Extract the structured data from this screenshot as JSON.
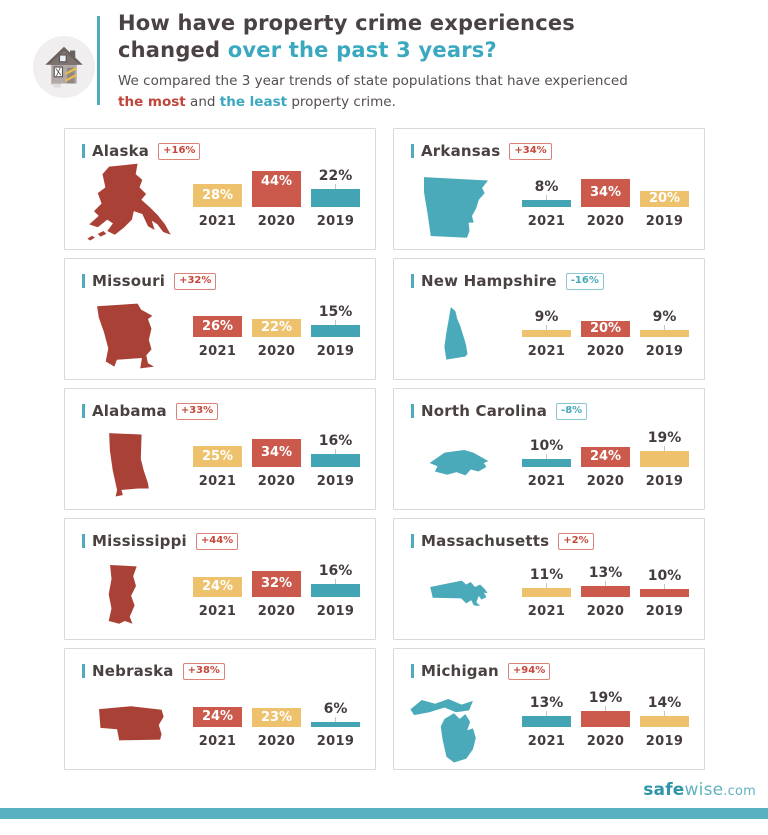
{
  "header": {
    "title_line1": "How have property crime experiences",
    "title_line2_dark": "changed ",
    "title_line2_accent": "over the past 3 years?",
    "subtitle_line1": "We compared the 3 year trends of state populations that have experienced",
    "subtitle_most": "the most",
    "subtitle_mid": " and ",
    "subtitle_least": "the least",
    "subtitle_tail": " property crime."
  },
  "footer": {
    "brand_bold": "safe",
    "brand_light": "wise",
    "brand_suffix": ".com"
  },
  "palette": {
    "bar_red": "#cb5a4d",
    "bar_yellow": "#eec26c",
    "bar_teal": "#43a4b3",
    "state_red": "#aa4136",
    "state_teal": "#4aaaba",
    "accent_teal": "#3aa8be",
    "accent_red": "#c0453a",
    "footer_bar": "#58b1c0"
  },
  "chart_data": [
    {
      "type": "bar",
      "state": "Alaska",
      "state_key": "alaska",
      "state_color": "red",
      "change_label": "+16%",
      "badge_color": "red",
      "categories": [
        "2021",
        "2020",
        "2019"
      ],
      "values": [
        28,
        44,
        22
      ],
      "bar_colors": [
        "yellow",
        "red",
        "teal"
      ],
      "label_inside": [
        true,
        true,
        false
      ]
    },
    {
      "type": "bar",
      "state": "Arkansas",
      "state_key": "arkansas",
      "state_color": "teal",
      "change_label": "+34%",
      "badge_color": "red",
      "categories": [
        "2021",
        "2020",
        "2019"
      ],
      "values": [
        8,
        34,
        20
      ],
      "bar_colors": [
        "teal",
        "red",
        "yellow"
      ],
      "label_inside": [
        false,
        true,
        true
      ]
    },
    {
      "type": "bar",
      "state": "Missouri",
      "state_key": "missouri",
      "state_color": "red",
      "change_label": "+32%",
      "badge_color": "red",
      "categories": [
        "2021",
        "2020",
        "2019"
      ],
      "values": [
        26,
        22,
        15
      ],
      "bar_colors": [
        "red",
        "yellow",
        "teal"
      ],
      "label_inside": [
        true,
        true,
        false
      ]
    },
    {
      "type": "bar",
      "state": "New Hampshire",
      "state_key": "new-hampshire",
      "state_color": "teal",
      "change_label": "-16%",
      "badge_color": "teal",
      "categories": [
        "2021",
        "2020",
        "2019"
      ],
      "values": [
        9,
        20,
        9
      ],
      "bar_colors": [
        "yellow",
        "red",
        "yellow"
      ],
      "label_inside": [
        false,
        true,
        false
      ]
    },
    {
      "type": "bar",
      "state": "Alabama",
      "state_key": "alabama",
      "state_color": "red",
      "change_label": "+33%",
      "badge_color": "red",
      "categories": [
        "2021",
        "2020",
        "2019"
      ],
      "values": [
        25,
        34,
        16
      ],
      "bar_colors": [
        "yellow",
        "red",
        "teal"
      ],
      "label_inside": [
        true,
        true,
        false
      ]
    },
    {
      "type": "bar",
      "state": "North Carolina",
      "state_key": "north-carolina",
      "state_color": "teal",
      "change_label": "-8%",
      "badge_color": "teal",
      "categories": [
        "2021",
        "2020",
        "2019"
      ],
      "values": [
        10,
        24,
        19
      ],
      "bar_colors": [
        "teal",
        "red",
        "yellow"
      ],
      "label_inside": [
        false,
        true,
        false
      ]
    },
    {
      "type": "bar",
      "state": "Mississippi",
      "state_key": "mississippi",
      "state_color": "red",
      "change_label": "+44%",
      "badge_color": "red",
      "categories": [
        "2021",
        "2020",
        "2019"
      ],
      "values": [
        24,
        32,
        16
      ],
      "bar_colors": [
        "yellow",
        "red",
        "teal"
      ],
      "label_inside": [
        true,
        true,
        false
      ]
    },
    {
      "type": "bar",
      "state": "Massachusetts",
      "state_key": "massachusetts",
      "state_color": "teal",
      "change_label": "+2%",
      "badge_color": "red",
      "categories": [
        "2021",
        "2020",
        "2019"
      ],
      "values": [
        11,
        13,
        10
      ],
      "bar_colors": [
        "yellow",
        "red",
        "red"
      ],
      "label_inside": [
        false,
        false,
        false
      ]
    },
    {
      "type": "bar",
      "state": "Nebraska",
      "state_key": "nebraska",
      "state_color": "red",
      "change_label": "+38%",
      "badge_color": "red",
      "categories": [
        "2021",
        "2020",
        "2019"
      ],
      "values": [
        24,
        23,
        6
      ],
      "bar_colors": [
        "red",
        "yellow",
        "teal"
      ],
      "label_inside": [
        true,
        true,
        false
      ]
    },
    {
      "type": "bar",
      "state": "Michigan",
      "state_key": "michigan",
      "state_color": "teal",
      "change_label": "+94%",
      "badge_color": "red",
      "categories": [
        "2021",
        "2020",
        "2019"
      ],
      "values": [
        13,
        19,
        14
      ],
      "bar_colors": [
        "teal",
        "red",
        "yellow"
      ],
      "label_inside": [
        false,
        false,
        false
      ]
    }
  ]
}
